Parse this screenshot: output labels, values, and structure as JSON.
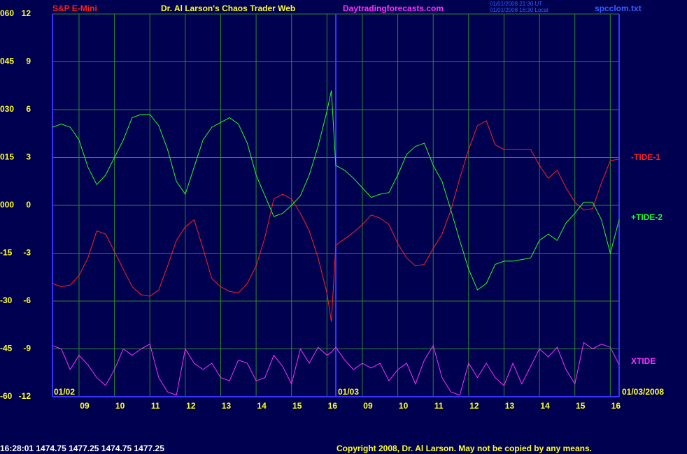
{
  "chart_data": {
    "type": "line",
    "symbol": "S&P E-Mini",
    "title": "Dr. Al Larson's Chaos Trader Web",
    "website": "Daytradingforecasts.com",
    "timestamps": [
      "01/01/2008 21:30 UT",
      "01/01/2008 16:30 Local"
    ],
    "file": "spcclom.txt",
    "date_labels": [
      "01/02",
      "01/03",
      "01/03/2008"
    ],
    "quote_line": "16:28:01  1474.75 1477.25 1474.75 1477.25",
    "copyright": "Copyright 2008, Dr. Al Larson. May not be copied by any means.",
    "grid": true,
    "day_break": 8,
    "xlim": [
      0,
      16
    ],
    "xticks": [
      {
        "value": 0.75,
        "label": "09"
      },
      {
        "value": 1.75,
        "label": "10"
      },
      {
        "value": 2.75,
        "label": "11"
      },
      {
        "value": 3.75,
        "label": "12"
      },
      {
        "value": 4.75,
        "label": "13"
      },
      {
        "value": 5.75,
        "label": "14"
      },
      {
        "value": 6.75,
        "label": "15"
      },
      {
        "value": 7.75,
        "label": "16"
      },
      {
        "value": 8.75,
        "label": "09"
      },
      {
        "value": 9.75,
        "label": "10"
      },
      {
        "value": 10.75,
        "label": "11"
      },
      {
        "value": 11.75,
        "label": "12"
      },
      {
        "value": 12.75,
        "label": "13"
      },
      {
        "value": 13.75,
        "label": "14"
      },
      {
        "value": 14.75,
        "label": "15"
      },
      {
        "value": 15.75,
        "label": "16"
      }
    ],
    "ylim": [
      -12,
      12
    ],
    "yticks": [
      12,
      9,
      6,
      3,
      0,
      -3,
      -6,
      -9,
      -12
    ],
    "y2lim": [
      -60,
      60
    ],
    "y2ticks": [
      {
        "value": 60,
        "label": "060"
      },
      {
        "value": 45,
        "label": "045"
      },
      {
        "value": 30,
        "label": "030"
      },
      {
        "value": 15,
        "label": "015"
      },
      {
        "value": 0,
        "label": "000"
      },
      -15,
      -30,
      -45,
      -60
    ],
    "x": [
      0,
      0.25,
      0.5,
      0.75,
      1,
      1.25,
      1.5,
      1.75,
      2,
      2.25,
      2.5,
      2.75,
      3,
      3.25,
      3.5,
      3.75,
      4,
      4.25,
      4.5,
      4.75,
      5,
      5.25,
      5.5,
      5.75,
      6,
      6.25,
      6.5,
      6.75,
      7,
      7.25,
      7.5,
      7.75,
      7.875,
      8,
      8.25,
      8.5,
      8.75,
      9,
      9.25,
      9.5,
      9.75,
      10,
      10.25,
      10.5,
      10.75,
      11,
      11.25,
      11.5,
      11.75,
      12,
      12.25,
      12.5,
      12.75,
      13,
      13.25,
      13.5,
      13.75,
      14,
      14.25,
      14.5,
      14.75,
      15,
      15.25,
      15.5,
      15.75,
      16
    ],
    "series": [
      {
        "name": "-TIDE-1",
        "color": "#ff2020",
        "values": [
          -4.9,
          -5.1,
          -5.0,
          -4.4,
          -3.3,
          -1.6,
          -1.8,
          -2.9,
          -4.0,
          -5.1,
          -5.6,
          -5.7,
          -5.3,
          -3.8,
          -2.2,
          -1.35,
          -0.9,
          -2.7,
          -4.6,
          -5.1,
          -5.4,
          -5.5,
          -4.9,
          -3.8,
          -2.0,
          0.4,
          0.7,
          0.4,
          -0.5,
          -1.6,
          -3.3,
          -5.5,
          -7.3,
          -2.5,
          -2.1,
          -1.7,
          -1.2,
          -0.6,
          -0.8,
          -1.2,
          -2.4,
          -3.3,
          -3.8,
          -3.7,
          -2.7,
          -1.8,
          -0.3,
          1.7,
          3.5,
          5.0,
          5.3,
          3.8,
          3.5,
          3.5,
          3.5,
          3.5,
          2.5,
          1.7,
          2.2,
          1.1,
          0.2,
          -0.3,
          -0.2,
          1.4,
          2.8,
          2.9
        ]
      },
      {
        "name": "+TIDE-2",
        "color": "#20ff20",
        "values": [
          4.9,
          5.1,
          4.9,
          4.1,
          2.4,
          1.3,
          1.9,
          3.0,
          4.1,
          5.5,
          5.7,
          5.7,
          5.0,
          3.5,
          1.5,
          0.7,
          2.4,
          4.1,
          4.9,
          5.2,
          5.5,
          5.1,
          3.9,
          1.9,
          0.6,
          -0.7,
          -0.5,
          0.0,
          0.6,
          1.9,
          3.7,
          5.9,
          7.2,
          2.5,
          2.2,
          1.7,
          1.1,
          0.5,
          0.7,
          0.8,
          1.9,
          3.2,
          3.7,
          3.9,
          2.5,
          1.5,
          -0.3,
          -2.2,
          -4.0,
          -5.3,
          -4.9,
          -3.7,
          -3.5,
          -3.5,
          -3.4,
          -3.3,
          -2.2,
          -1.8,
          -2.2,
          -1.1,
          -0.5,
          0.2,
          0.2,
          -0.9,
          -3.0,
          -0.9
        ]
      },
      {
        "name": "XTIDE",
        "color": "#ff30ff",
        "values": [
          -8.8,
          -9.0,
          -10.3,
          -9.4,
          -10.0,
          -10.8,
          -11.3,
          -10.3,
          -9.0,
          -9.4,
          -9.0,
          -8.7,
          -10.8,
          -11.7,
          -11.9,
          -9.0,
          -9.9,
          -10.3,
          -9.9,
          -10.8,
          -11.0,
          -9.7,
          -9.9,
          -11.0,
          -10.8,
          -9.4,
          -10.1,
          -11.2,
          -9.0,
          -9.9,
          -8.9,
          -9.4,
          -9.2,
          -8.9,
          -9.7,
          -10.3,
          -9.9,
          -10.2,
          -9.9,
          -11.0,
          -10.3,
          -9.9,
          -11.2,
          -9.7,
          -8.8,
          -10.8,
          -11.7,
          -11.9,
          -9.9,
          -10.8,
          -9.9,
          -10.8,
          -11.3,
          -9.9,
          -11.2,
          -10.1,
          -9.0,
          -9.5,
          -8.9,
          -10.3,
          -11.2,
          -8.6,
          -9.0,
          -8.7,
          -8.9,
          -10.0
        ]
      }
    ]
  }
}
